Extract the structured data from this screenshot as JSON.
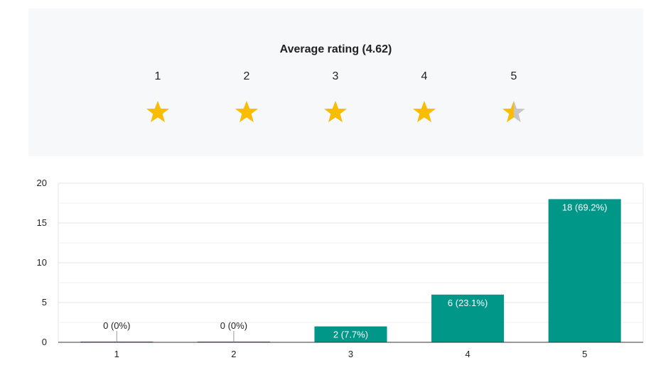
{
  "summary": {
    "title": "Average rating (4.62)",
    "average": 4.62,
    "max_stars": 5,
    "star_labels": [
      "1",
      "2",
      "3",
      "4",
      "5"
    ],
    "star_fill": [
      1,
      1,
      1,
      1,
      0.5
    ],
    "star_color": "#fbbc04",
    "star_empty_color": "#c6c6c6"
  },
  "chart_data": {
    "type": "bar",
    "categories": [
      "1",
      "2",
      "3",
      "4",
      "5"
    ],
    "values": [
      0,
      0,
      2,
      6,
      18
    ],
    "data_labels": [
      "0 (0%)",
      "0 (0%)",
      "2 (7.7%)",
      "6 (23.1%)",
      "18 (69.2%)"
    ],
    "y_ticks": [
      "0",
      "5",
      "10",
      "15",
      "20"
    ],
    "ylim": [
      0,
      20
    ],
    "grid": true,
    "bar_color": "#009688",
    "title": "",
    "xlabel": "",
    "ylabel": ""
  }
}
